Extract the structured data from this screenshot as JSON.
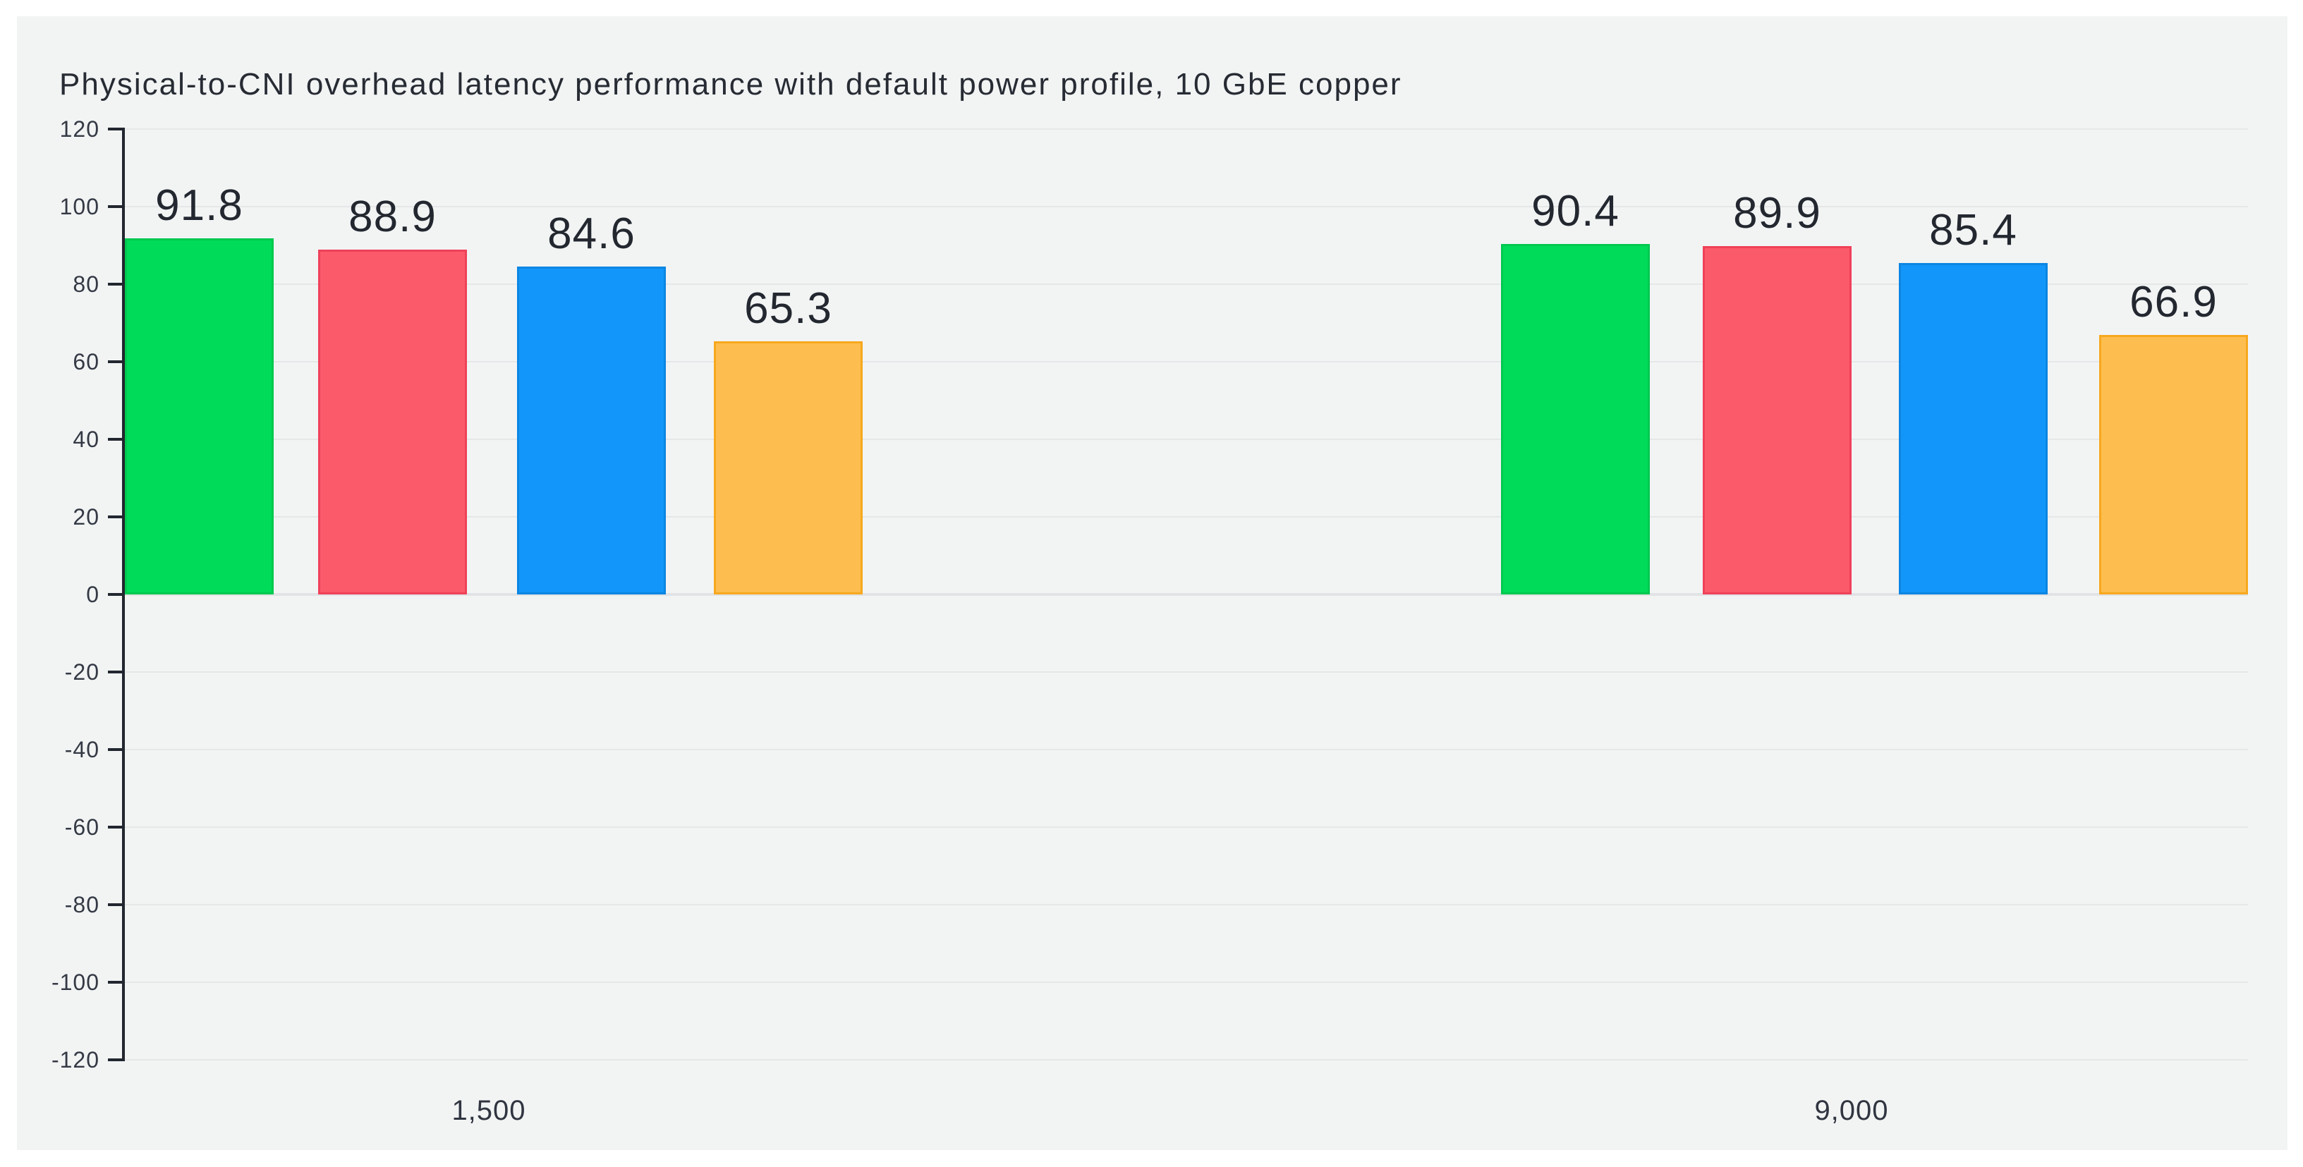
{
  "title": "Physical-to-CNI overhead latency performance with default power profile, 10 GbE copper",
  "chart_data": {
    "type": "bar",
    "title": "Physical-to-CNI overhead latency performance with default power profile, 10 GbE copper",
    "xlabel": "",
    "ylabel": "",
    "categories": [
      "1,500",
      "9,000"
    ],
    "series": [
      {
        "color": "#00DC5A",
        "border_color": "#00C94F",
        "values": [
          91.8,
          90.4
        ]
      },
      {
        "color": "#FB5A6B",
        "border_color": "#EF4159",
        "values": [
          88.9,
          89.9
        ]
      },
      {
        "color": "#1296F9",
        "border_color": "#0C86E2",
        "values": [
          84.6,
          85.4
        ]
      },
      {
        "color": "#FEBE4F",
        "border_color": "#F7A81F",
        "values": [
          65.3,
          66.9
        ]
      }
    ],
    "value_labels": [
      [
        "91.8",
        "88.9",
        "84.6",
        "65.3"
      ],
      [
        "90.4",
        "89.9",
        "85.4",
        "66.9"
      ]
    ],
    "ylim": [
      -120,
      120
    ],
    "yticks": [
      120,
      100,
      80,
      60,
      40,
      20,
      0,
      -20,
      -40,
      -60,
      -80,
      -100,
      -120
    ],
    "grid": true,
    "legend": "none",
    "background": "#F2F4F4"
  }
}
